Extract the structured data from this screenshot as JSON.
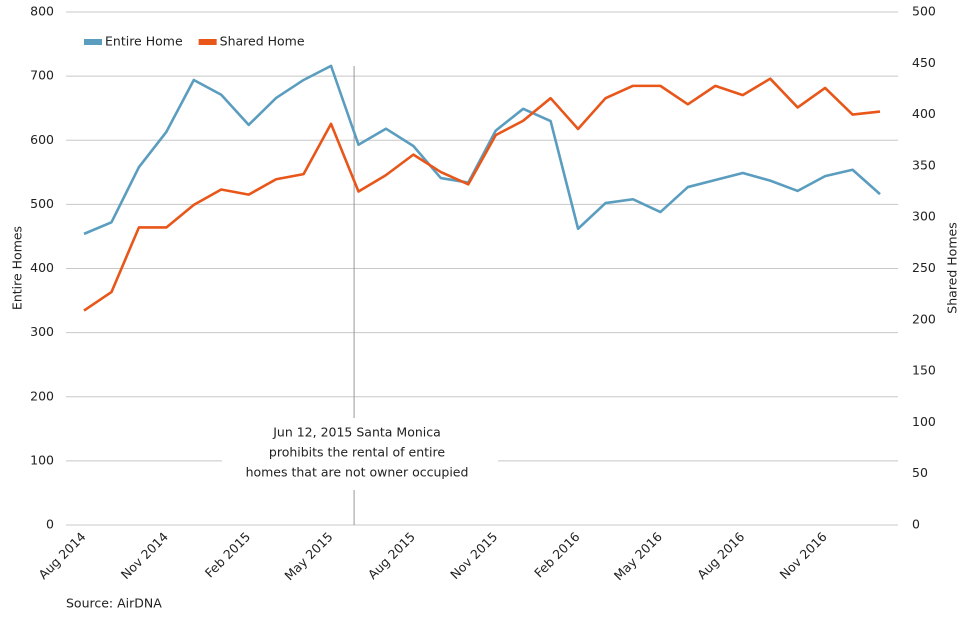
{
  "chart_data": {
    "type": "line",
    "categories": [
      "Aug 2014",
      null,
      null,
      "Nov 2014",
      null,
      null,
      "Feb 2015",
      null,
      null,
      "May 2015",
      null,
      null,
      "Aug 2015",
      null,
      null,
      "Nov 2015",
      null,
      null,
      "Feb 2016",
      null,
      null,
      "May 2016",
      null,
      null,
      "Aug 2016",
      null,
      null,
      "Nov 2016",
      null,
      null
    ],
    "series": [
      {
        "name": "Entire Home",
        "color": "#5b9dbf",
        "values": [
          454,
          472,
          558,
          613,
          694,
          671,
          624,
          666,
          694,
          716,
          593,
          618,
          591,
          541,
          534,
          615,
          649,
          630,
          462,
          502,
          508,
          488,
          527,
          538,
          549,
          537,
          521,
          544,
          554,
          516
        ]
      },
      {
        "name": "Shared Home",
        "color": "#e8561a",
        "axis": "y2",
        "values": [
          209,
          227,
          290,
          290,
          312,
          327,
          322,
          337,
          342,
          391,
          325,
          341,
          361,
          344,
          332,
          380,
          394,
          416,
          386,
          416,
          428,
          428,
          410,
          428,
          419,
          435,
          407,
          426,
          400,
          403
        ]
      }
    ],
    "ylabel": "Entire Homes",
    "y2label": "Shared Homes",
    "ylim": [
      0,
      800
    ],
    "yticks": [
      0,
      100,
      200,
      300,
      400,
      500,
      600,
      700,
      800
    ],
    "y2lim": [
      0,
      500
    ],
    "y2ticks": [
      0,
      50,
      100,
      150,
      200,
      250,
      300,
      350,
      400,
      450,
      500
    ],
    "grid": true,
    "legend": "top-left",
    "annotation": [
      "Jun 12, 2015 Santa Monica",
      "prohibits the rental of entire",
      "homes that are not owner occupied"
    ],
    "source": "Source: AirDNA"
  }
}
